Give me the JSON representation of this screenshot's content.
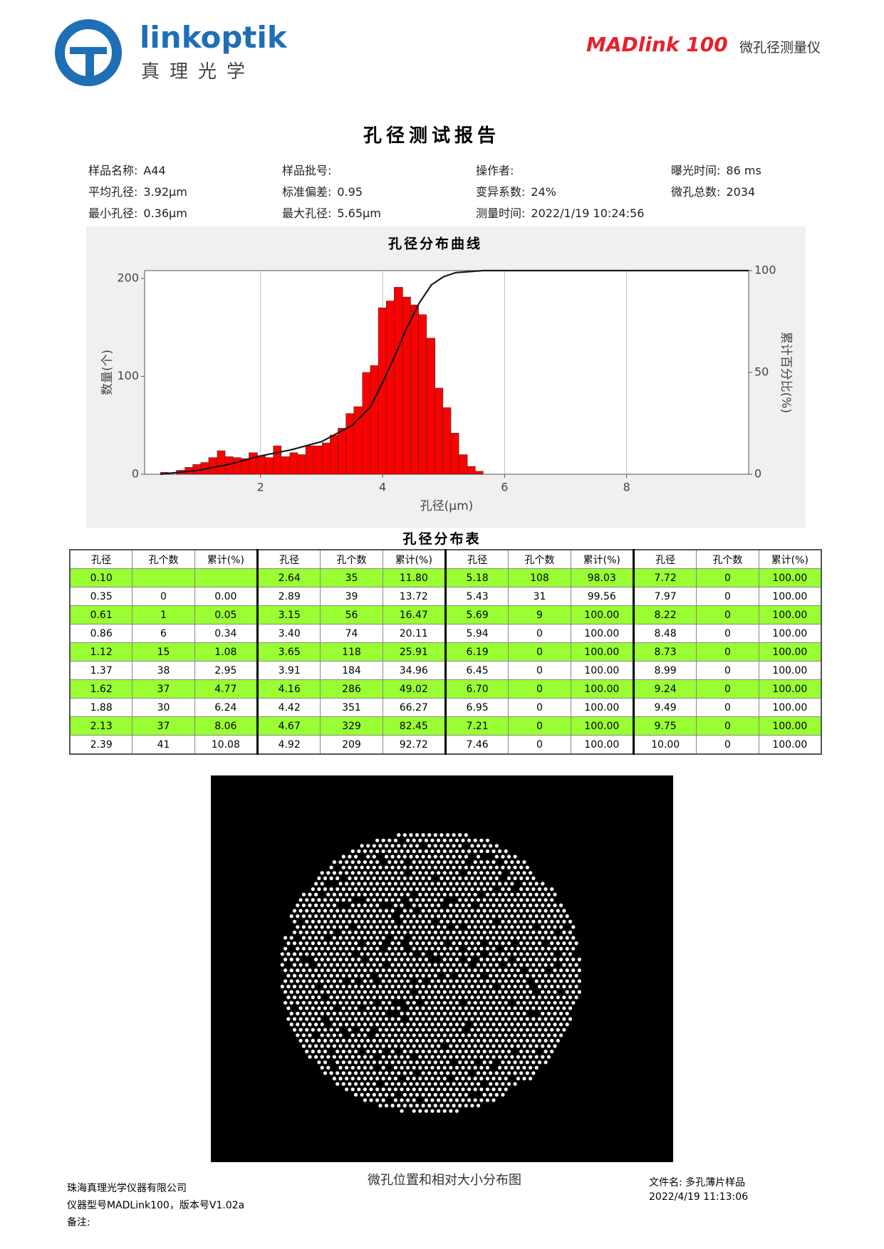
{
  "header": {
    "brand": "linkoptik",
    "brand_cn": "真理光学",
    "product": "MADlink 100",
    "product_desc": "微孔径测量仪"
  },
  "title": "孔径测试报告",
  "info": [
    {
      "label": "样品名称:",
      "value": "A44"
    },
    {
      "label": "样品批号:"
    },
    {
      "label": "操作者:"
    },
    {
      "label": "曝光时间:",
      "value": "86 ms"
    },
    {
      "label": "平均孔径:",
      "value": "3.92μm"
    },
    {
      "label": "标准偏差:",
      "value": "0.95"
    },
    {
      "label": "变异系数:",
      "value": "24%"
    },
    {
      "label": "微孔总数:",
      "value": "2034"
    },
    {
      "label": "最小孔径:",
      "value": "0.36μm"
    },
    {
      "label": "最大孔径:",
      "value": "5.65μm"
    },
    {
      "label": "测量时间:",
      "value": "2022/1/19 10:24:56"
    }
  ],
  "chart_data": {
    "type": "histogram",
    "title": "孔径分布曲线",
    "x_label": "孔径(μm)",
    "y_label": "数量(个)",
    "y2_label": "累计百分比(%)",
    "bins": [
      0.36,
      0.49,
      0.62,
      0.76,
      0.89,
      1.02,
      1.15,
      1.29,
      1.42,
      1.55,
      1.68,
      1.81,
      1.95,
      2.08,
      2.21,
      2.34,
      2.48,
      2.61,
      2.74,
      2.87,
      3.01,
      3.14,
      3.27,
      3.4,
      3.53,
      3.67,
      3.8,
      3.93,
      4.06,
      4.19,
      4.33,
      4.46,
      4.59,
      4.72,
      4.86,
      4.99,
      5.12,
      5.25,
      5.39,
      5.52,
      5.65
    ],
    "values": [
      2,
      0,
      4,
      7,
      10,
      12,
      17,
      24,
      18,
      17,
      16,
      22,
      19,
      17,
      29,
      18,
      22,
      20,
      29,
      29,
      32,
      40,
      47,
      62,
      69,
      104,
      111,
      170,
      177,
      191,
      181,
      173,
      163,
      139,
      88,
      68,
      42,
      20,
      8,
      3
    ],
    "color": "#ff0000",
    "cumulative": {
      "type": "line",
      "axis": "y2",
      "color": "#1a1a1a",
      "x": [
        0.36,
        1,
        1.5,
        2,
        2.5,
        3,
        3.5,
        3.8,
        4,
        4.2,
        4.4,
        4.6,
        4.8,
        5,
        5.2,
        5.65,
        10
      ],
      "values": [
        0,
        2,
        5,
        9,
        12,
        16,
        24,
        33,
        45,
        58,
        72,
        84,
        93,
        97,
        99,
        100,
        100
      ]
    },
    "xlim": [
      0.1,
      10
    ],
    "ylim": [
      0,
      208
    ],
    "y2lim": [
      0,
      100
    ],
    "xticks": [
      2,
      4,
      6,
      8
    ],
    "yticks": [
      0,
      100,
      200
    ],
    "y2ticks": [
      0,
      50,
      100
    ],
    "grid": "x"
  },
  "table": {
    "title": "孔径分布表",
    "header": [
      "孔径",
      "孔个数",
      "累计(%)",
      "孔径",
      "孔个数",
      "累计(%)",
      "孔径",
      "孔个数",
      "累计(%)",
      "孔径",
      "孔个数",
      "累计(%)"
    ],
    "rows": [
      [
        "0.10",
        null,
        null,
        "2.64",
        "35",
        "11.80",
        "5.18",
        "108",
        "98.03",
        "7.72",
        "0",
        "100.00"
      ],
      [
        "0.35",
        "0",
        "0.00",
        "2.89",
        "39",
        "13.72",
        "5.43",
        "31",
        "99.56",
        "7.97",
        "0",
        "100.00"
      ],
      [
        "0.61",
        "1",
        "0.05",
        "3.15",
        "56",
        "16.47",
        "5.69",
        "9",
        "100.00",
        "8.22",
        "0",
        "100.00"
      ],
      [
        "0.86",
        "6",
        "0.34",
        "3.40",
        "74",
        "20.11",
        "5.94",
        "0",
        "100.00",
        "8.48",
        "0",
        "100.00"
      ],
      [
        "1.12",
        "15",
        "1.08",
        "3.65",
        "118",
        "25.91",
        "6.19",
        "0",
        "100.00",
        "8.73",
        "0",
        "100.00"
      ],
      [
        "1.37",
        "38",
        "2.95",
        "3.91",
        "184",
        "34.96",
        "6.45",
        "0",
        "100.00",
        "8.99",
        "0",
        "100.00"
      ],
      [
        "1.62",
        "37",
        "4.77",
        "4.16",
        "286",
        "49.02",
        "6.70",
        "0",
        "100.00",
        "9.24",
        "0",
        "100.00"
      ],
      [
        "1.88",
        "30",
        "6.24",
        "4.42",
        "351",
        "66.27",
        "6.95",
        "0",
        "100.00",
        "9.49",
        "0",
        "100.00"
      ],
      [
        "2.13",
        "37",
        "8.06",
        "4.67",
        "329",
        "82.45",
        "7.21",
        "0",
        "100.00",
        "9.75",
        "0",
        "100.00"
      ],
      [
        "2.39",
        "41",
        "10.08",
        "4.92",
        "209",
        "92.72",
        "7.46",
        "0",
        "100.00",
        "10.00",
        "0",
        "100.00"
      ]
    ]
  },
  "image_caption": "微孔位置和相对大小分布图",
  "footer": {
    "company": "珠海真理光学仪器有限公司",
    "model": "仪器型号MADLink100，版本号V1.02a",
    "remark": "备注:",
    "file": "文件名: 多孔薄片样品",
    "time": "2022/4/19 11:13:06"
  }
}
